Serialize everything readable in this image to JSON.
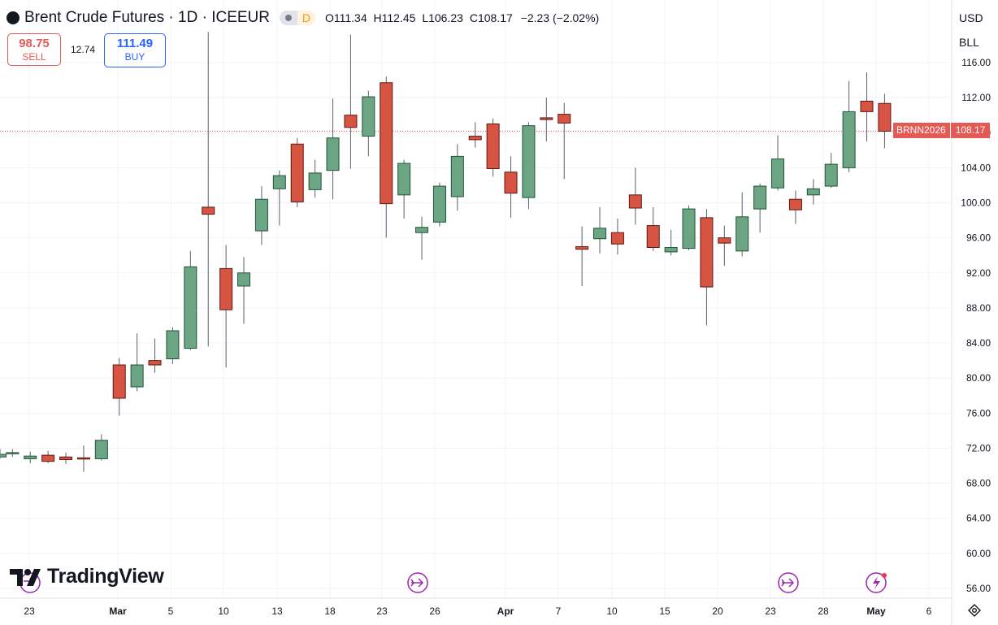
{
  "header": {
    "title": "Brent Crude Futures · 1D · ICEEUR",
    "timeframe_badge": "D",
    "ohlc": {
      "o_label": "O",
      "o": "111.34",
      "h_label": "H",
      "h": "112.45",
      "l_label": "L",
      "l": "106.23",
      "c_label": "C",
      "c": "108.17",
      "change": "−2.23 (−2.02%)"
    }
  },
  "trade": {
    "sell_price": "98.75",
    "sell_label": "SELL",
    "spread": "12.74",
    "buy_price": "111.49",
    "buy_label": "BUY"
  },
  "scale": {
    "currency": "USD",
    "unit": "BLL"
  },
  "last_price": {
    "symbol": "BRNN2026",
    "value": "108.17"
  },
  "logo": "TradingView",
  "colors": {
    "up": "#6ba583",
    "down": "#d75442",
    "up_stroke": "#225437",
    "down_stroke": "#5b1a13",
    "last_line": "#e35b54"
  },
  "chart_data": {
    "type": "candlestick",
    "ylim": [
      54,
      118
    ],
    "y_ticks": [
      56,
      60,
      64,
      68,
      72,
      76,
      80,
      84,
      88,
      92,
      96,
      100,
      104,
      108,
      112,
      116
    ],
    "x_ticks": [
      "23",
      "Mar",
      "5",
      "10",
      "13",
      "18",
      "23",
      "26",
      "Apr",
      "7",
      "10",
      "15",
      "20",
      "23",
      "28",
      "May",
      "6"
    ],
    "candles": [
      {
        "x": "Feb 19",
        "o": 71.0,
        "h": 71.9,
        "l": 70.8,
        "c": 71.3
      },
      {
        "x": "Feb 20",
        "o": 71.4,
        "h": 71.9,
        "l": 71.0,
        "c": 71.5
      },
      {
        "x": "Feb 23",
        "o": 70.8,
        "h": 71.6,
        "l": 70.3,
        "c": 71.1
      },
      {
        "x": "Feb 24",
        "o": 71.2,
        "h": 71.7,
        "l": 70.3,
        "c": 70.5
      },
      {
        "x": "Feb 25",
        "o": 71.0,
        "h": 71.5,
        "l": 70.2,
        "c": 70.7
      },
      {
        "x": "Feb 26",
        "o": 70.9,
        "h": 72.3,
        "l": 69.3,
        "c": 70.8
      },
      {
        "x": "Feb 27",
        "o": 70.8,
        "h": 73.6,
        "l": 70.6,
        "c": 72.9
      },
      {
        "x": "Mar 2",
        "o": 81.5,
        "h": 82.3,
        "l": 75.7,
        "c": 77.7
      },
      {
        "x": "Mar 3",
        "o": 79.0,
        "h": 85.1,
        "l": 78.5,
        "c": 81.5
      },
      {
        "x": "Mar 4",
        "o": 82.0,
        "h": 84.5,
        "l": 80.6,
        "c": 81.5
      },
      {
        "x": "Mar 5",
        "o": 82.2,
        "h": 85.8,
        "l": 81.6,
        "c": 85.4
      },
      {
        "x": "Mar 6",
        "o": 83.4,
        "h": 94.5,
        "l": 83.2,
        "c": 92.7
      },
      {
        "x": "Mar 9",
        "o": 99.5,
        "h": 119.5,
        "l": 83.6,
        "c": 98.7
      },
      {
        "x": "Mar 10",
        "o": 92.5,
        "h": 95.2,
        "l": 81.2,
        "c": 87.8
      },
      {
        "x": "Mar 11",
        "o": 90.5,
        "h": 93.8,
        "l": 86.2,
        "c": 92.0
      },
      {
        "x": "Mar 12",
        "o": 96.8,
        "h": 101.9,
        "l": 95.2,
        "c": 100.4
      },
      {
        "x": "Mar 13",
        "o": 101.6,
        "h": 103.7,
        "l": 97.4,
        "c": 103.1
      },
      {
        "x": "Mar 16",
        "o": 106.7,
        "h": 107.4,
        "l": 99.5,
        "c": 100.1
      },
      {
        "x": "Mar 17",
        "o": 101.5,
        "h": 104.9,
        "l": 100.6,
        "c": 103.4
      },
      {
        "x": "Mar 18",
        "o": 103.7,
        "h": 111.9,
        "l": 100.4,
        "c": 107.4
      },
      {
        "x": "Mar 19",
        "o": 110.0,
        "h": 119.2,
        "l": 103.9,
        "c": 108.6
      },
      {
        "x": "Mar 20",
        "o": 107.6,
        "h": 112.8,
        "l": 105.3,
        "c": 112.1
      },
      {
        "x": "Mar 23",
        "o": 113.7,
        "h": 114.4,
        "l": 96.0,
        "c": 99.9
      },
      {
        "x": "Mar 24",
        "o": 100.9,
        "h": 104.9,
        "l": 98.2,
        "c": 104.5
      },
      {
        "x": "Mar 25",
        "o": 96.6,
        "h": 98.4,
        "l": 93.5,
        "c": 97.2
      },
      {
        "x": "Mar 26",
        "o": 97.8,
        "h": 102.3,
        "l": 97.3,
        "c": 101.9
      },
      {
        "x": "Mar 27",
        "o": 100.7,
        "h": 106.7,
        "l": 99.1,
        "c": 105.3
      },
      {
        "x": "Mar 30",
        "o": 107.6,
        "h": 109.2,
        "l": 106.3,
        "c": 107.2
      },
      {
        "x": "Mar 31",
        "o": 109.0,
        "h": 109.6,
        "l": 103.0,
        "c": 103.9
      },
      {
        "x": "Apr 1",
        "o": 103.5,
        "h": 105.3,
        "l": 98.3,
        "c": 101.1
      },
      {
        "x": "Apr 2",
        "o": 100.6,
        "h": 109.2,
        "l": 99.3,
        "c": 108.8
      },
      {
        "x": "Apr 6",
        "o": 109.7,
        "h": 112.0,
        "l": 107.0,
        "c": 109.5
      },
      {
        "x": "Apr 7",
        "o": 110.1,
        "h": 111.4,
        "l": 102.7,
        "c": 109.1
      },
      {
        "x": "Apr 8",
        "o": 95.0,
        "h": 97.3,
        "l": 90.5,
        "c": 94.7
      },
      {
        "x": "Apr 9",
        "o": 95.9,
        "h": 99.5,
        "l": 94.2,
        "c": 97.1
      },
      {
        "x": "Apr 10",
        "o": 96.6,
        "h": 98.2,
        "l": 94.1,
        "c": 95.3
      },
      {
        "x": "Apr 13",
        "o": 100.9,
        "h": 104.0,
        "l": 97.5,
        "c": 99.4
      },
      {
        "x": "Apr 14",
        "o": 97.4,
        "h": 99.5,
        "l": 94.5,
        "c": 94.9
      },
      {
        "x": "Apr 15",
        "o": 94.4,
        "h": 96.9,
        "l": 94.0,
        "c": 94.9
      },
      {
        "x": "Apr 16",
        "o": 94.8,
        "h": 99.7,
        "l": 94.6,
        "c": 99.3
      },
      {
        "x": "Apr 17",
        "o": 98.3,
        "h": 99.3,
        "l": 86.0,
        "c": 90.4
      },
      {
        "x": "Apr 20",
        "o": 96.0,
        "h": 97.4,
        "l": 92.8,
        "c": 95.4
      },
      {
        "x": "Apr 21",
        "o": 94.5,
        "h": 101.2,
        "l": 93.9,
        "c": 98.4
      },
      {
        "x": "Apr 22",
        "o": 99.3,
        "h": 102.2,
        "l": 96.6,
        "c": 101.9
      },
      {
        "x": "Apr 23",
        "o": 101.7,
        "h": 107.7,
        "l": 101.4,
        "c": 105.0
      },
      {
        "x": "Apr 24",
        "o": 100.4,
        "h": 101.4,
        "l": 97.6,
        "c": 99.2
      },
      {
        "x": "Apr 27",
        "o": 100.9,
        "h": 102.7,
        "l": 99.8,
        "c": 101.6
      },
      {
        "x": "Apr 28",
        "o": 101.9,
        "h": 105.7,
        "l": 101.7,
        "c": 104.4
      },
      {
        "x": "Apr 29",
        "o": 104.0,
        "h": 113.9,
        "l": 103.5,
        "c": 110.4
      },
      {
        "x": "Apr 30",
        "o": 111.6,
        "h": 114.9,
        "l": 107.0,
        "c": 110.4
      },
      {
        "x": "May 1",
        "o": 111.34,
        "h": 112.45,
        "l": 106.23,
        "c": 108.17
      }
    ],
    "candle_slots": [
      0,
      0.7,
      1.7,
      2.7,
      3.7,
      4.7,
      5.7,
      6.7,
      7.7,
      8.7,
      9.7,
      10.7,
      11.7,
      12.7,
      13.7,
      14.7,
      15.7,
      16.7,
      17.7,
      18.7,
      19.7,
      20.7,
      21.7,
      22.7,
      23.7,
      24.7,
      25.7,
      26.7,
      27.7,
      28.7,
      29.7,
      30.7,
      31.7,
      32.7,
      33.7,
      34.7,
      35.7,
      36.7,
      37.7,
      38.7,
      39.7,
      40.7,
      41.7,
      42.7,
      43.7,
      44.7,
      45.7,
      46.7,
      47.7,
      48.7,
      49.7
    ]
  }
}
